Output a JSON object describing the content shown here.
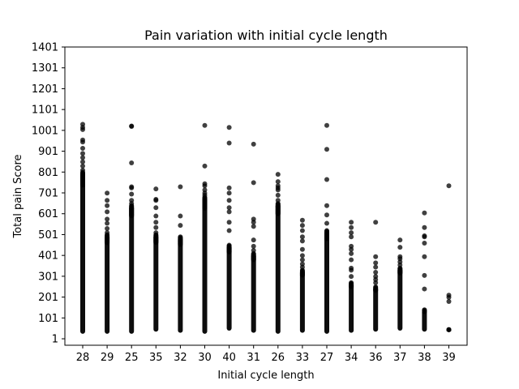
{
  "chart_data": {
    "type": "scatter",
    "title": "Pain variation with initial cycle length",
    "xlabel": "Initial cycle length",
    "ylabel": "Total pain Score",
    "categories": [
      "28",
      "29",
      "25",
      "35",
      "32",
      "30",
      "40",
      "31",
      "26",
      "33",
      "27",
      "34",
      "36",
      "37",
      "38",
      "39"
    ],
    "yticks": [
      1,
      101,
      201,
      301,
      401,
      501,
      601,
      701,
      801,
      901,
      1001,
      1101,
      1201,
      1301,
      1401
    ],
    "ylim": [
      -30,
      1401
    ],
    "grid": false,
    "marker_color": "#000000",
    "marker_opacity": 0.75,
    "series": [
      {
        "name": "",
        "bands": [
          {
            "category": "28",
            "low": 25,
            "high": 800,
            "outliers": [
              810,
              830,
              850,
              870,
              890,
              915,
              945,
              955,
              1005,
              1015,
              1030
            ]
          },
          {
            "category": "29",
            "low": 25,
            "high": 500,
            "outliers": [
              510,
              530,
              555,
              575,
              610,
              640,
              665,
              700
            ]
          },
          {
            "category": "25",
            "low": 25,
            "high": 640,
            "outliers": [
              650,
              665,
              695,
              725,
              730,
              845,
              1020,
              1022
            ]
          },
          {
            "category": "35",
            "low": 35,
            "high": 500,
            "outliers": [
              510,
              535,
              560,
              590,
              630,
              665,
              670,
              720
            ]
          },
          {
            "category": "32",
            "low": 30,
            "high": 490,
            "outliers": [
              545,
              590,
              730
            ]
          },
          {
            "category": "30",
            "low": 25,
            "high": 680,
            "outliers": [
              690,
              700,
              715,
              735,
              745,
              830,
              1025
            ]
          },
          {
            "category": "40",
            "low": 40,
            "high": 450,
            "outliers": [
              520,
              560,
              610,
              630,
              665,
              700,
              725,
              940,
              1015
            ]
          },
          {
            "category": "31",
            "low": 30,
            "high": 410,
            "outliers": [
              425,
              445,
              475,
              540,
              560,
              575,
              750,
              935
            ]
          },
          {
            "category": "26",
            "low": 25,
            "high": 650,
            "outliers": [
              665,
              690,
              715,
              725,
              735,
              755,
              790
            ]
          },
          {
            "category": "33",
            "low": 30,
            "high": 330,
            "outliers": [
              345,
              360,
              380,
              400,
              430,
              470,
              490,
              520,
              545,
              570
            ]
          },
          {
            "category": "27",
            "low": 25,
            "high": 520,
            "outliers": [
              555,
              595,
              640,
              765,
              910,
              1025
            ]
          },
          {
            "category": "34",
            "low": 30,
            "high": 270,
            "outliers": [
              300,
              330,
              340,
              380,
              410,
              430,
              445,
              490,
              510,
              535,
              560
            ]
          },
          {
            "category": "36",
            "low": 35,
            "high": 250,
            "outliers": [
              270,
              285,
              300,
              320,
              345,
              365,
              395,
              560
            ]
          },
          {
            "category": "37",
            "low": 40,
            "high": 340,
            "outliers": [
              355,
              370,
              385,
              395,
              440,
              475
            ]
          },
          {
            "category": "38",
            "low": 35,
            "high": 140,
            "outliers": [
              240,
              305,
              395,
              460,
              490,
              495,
              535,
              605
            ]
          },
          {
            "category": "39",
            "low": 35,
            "high": 45,
            "outliers": [
              180,
              200,
              210,
              735
            ]
          }
        ]
      }
    ]
  }
}
